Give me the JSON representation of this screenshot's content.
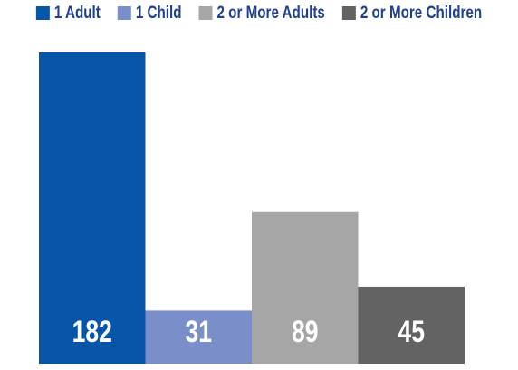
{
  "chart_data": {
    "type": "bar",
    "categories": [
      "1 Adult",
      "1 Child",
      "2 or More Adults",
      "2 or More Children"
    ],
    "values": [
      182,
      31,
      89,
      45
    ],
    "colors": [
      "#0655a8",
      "#7a8fca",
      "#a6a6a6",
      "#636363"
    ],
    "value_label_color": "#ffffff",
    "legend_text_color": "#1f3f8f",
    "legend": {
      "position": "top",
      "entries": [
        "1 Adult",
        "1 Child",
        "2 or More Adults",
        "2 or More Children"
      ]
    },
    "title": "",
    "xlabel": "",
    "ylabel": "",
    "ylim": [
      0,
      182
    ],
    "grid": false,
    "axes_visible": false,
    "data_labels": "inside-bottom"
  }
}
